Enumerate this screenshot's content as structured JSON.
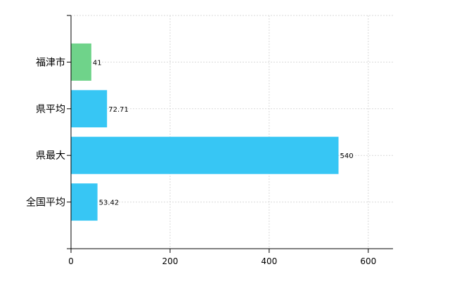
{
  "chart_data": {
    "type": "bar",
    "orientation": "horizontal",
    "categories": [
      "福津市",
      "県平均",
      "県最大",
      "全国平均"
    ],
    "values": [
      41,
      72.71,
      540,
      53.42
    ],
    "value_labels": [
      "41",
      "72.71",
      "540",
      "53.42"
    ],
    "bar_colors": [
      "#6fd38a",
      "#37c6f4",
      "#37c6f4",
      "#37c6f4"
    ],
    "xlim": [
      0,
      650
    ],
    "xticks": [
      0,
      200,
      400,
      600
    ],
    "xtick_labels": [
      "0",
      "200",
      "400",
      "600"
    ],
    "grid": true,
    "legend": "none"
  }
}
